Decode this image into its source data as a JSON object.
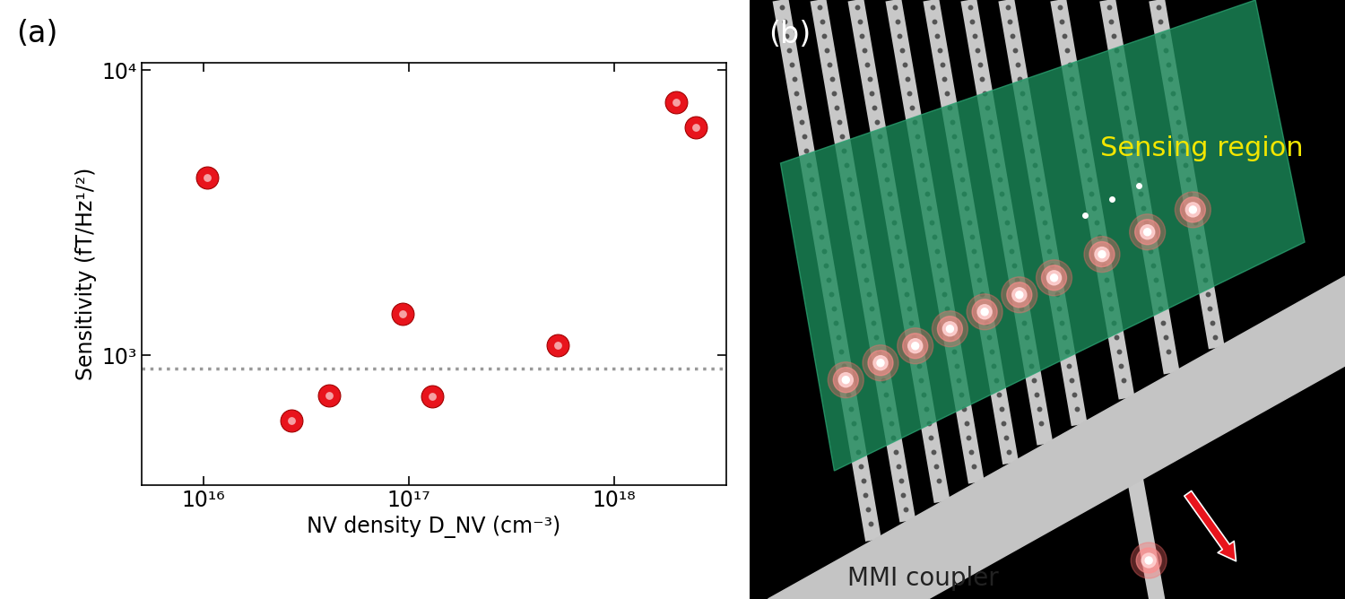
{
  "chart_data": {
    "type": "scatter",
    "panel_label": "(a)",
    "x_label": "NV density D_NV (cm⁻³)",
    "y_label": "Sensitivity (fT/Hz¹/²)",
    "x": [
      1.05e+16,
      2.7e+16,
      4.1e+16,
      9.3e+16,
      1.3e+17,
      5.3e+17,
      2e+18,
      2.5e+18
    ],
    "values": [
      4200,
      590,
      720,
      1400,
      715,
      1080,
      7700,
      6300
    ],
    "color": "#e8141c",
    "marker": "o",
    "log": true,
    "xlim": [
      5000000000000000.0,
      3.5e+18
    ],
    "ylim": [
      350,
      10600
    ],
    "xticks": [
      {
        "value": 1e+16,
        "label": "10¹⁶"
      },
      {
        "value": 1e+17,
        "label": "10¹⁷"
      },
      {
        "value": 1e+18,
        "label": "10¹⁸"
      }
    ],
    "yticks": [
      {
        "value": 1000,
        "label": "10³"
      },
      {
        "value": 10000,
        "label": "10⁴"
      }
    ],
    "reference_line": {
      "value": 900,
      "color": "#999999",
      "line_style": "dotted"
    }
  },
  "diagram": {
    "panel_label": "(b)",
    "sensing_region": {
      "label": "Sensing region"
    },
    "coupler": {
      "label": "MMI coupler"
    }
  }
}
